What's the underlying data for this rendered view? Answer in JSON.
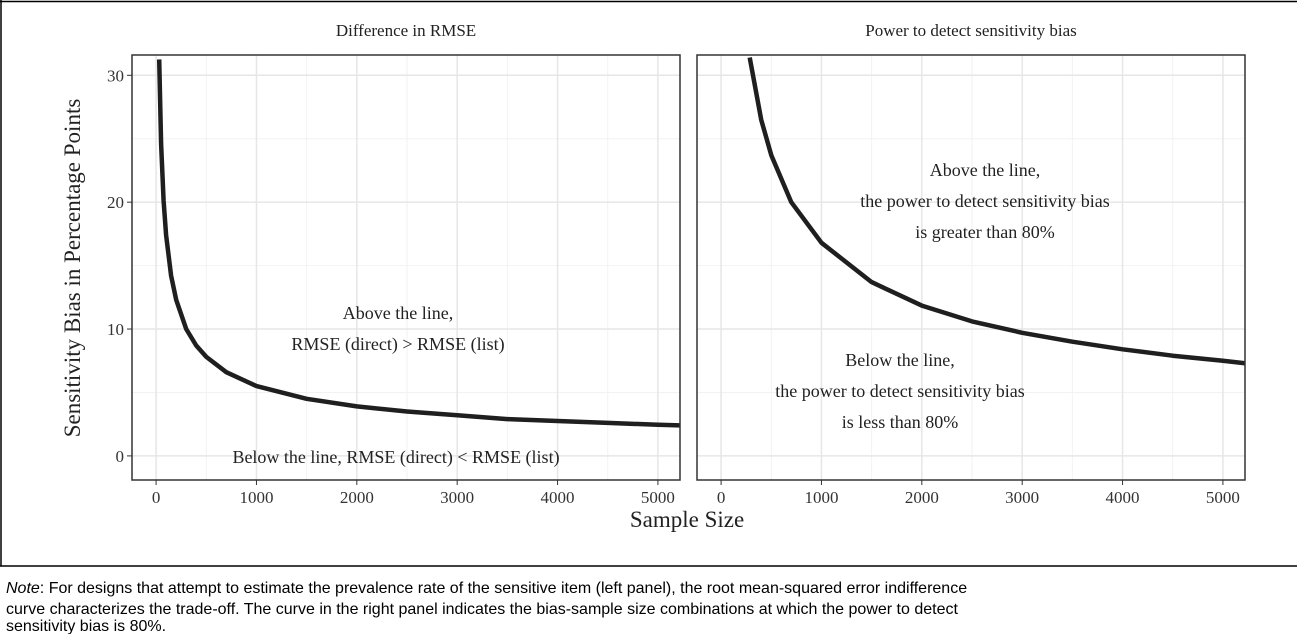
{
  "chart_data": [
    {
      "type": "line",
      "title": "Difference in RMSE",
      "x": [
        31,
        50,
        75,
        100,
        150,
        200,
        300,
        400,
        500,
        700,
        1000,
        1500,
        2000,
        2500,
        3000,
        3500,
        4000,
        4500,
        5000,
        5220
      ],
      "values": [
        31.25,
        24.6,
        20.1,
        17.4,
        14.2,
        12.3,
        10.0,
        8.7,
        7.8,
        6.6,
        5.5,
        4.5,
        3.9,
        3.5,
        3.2,
        2.9,
        2.75,
        2.6,
        2.45,
        2.4
      ],
      "color": "#1f1f1f",
      "xlim": [
        -240,
        5220
      ],
      "ylim": [
        -1.9,
        31.6
      ],
      "xticks": [
        0,
        1000,
        2000,
        3000,
        4000,
        5000
      ],
      "yticks": [
        0,
        10,
        20,
        30
      ],
      "minor_xticks": [
        500,
        1500,
        2500,
        3500,
        4500
      ],
      "minor_yticks": [
        5,
        15,
        25
      ],
      "grid": true,
      "y_tick_labels": true,
      "annotations": [
        {
          "lines": [
            "Above the line,",
            "RMSE (direct) > RMSE (list)"
          ]
        },
        {
          "lines": [
            "Below the line, RMSE (direct) < RMSE (list)"
          ]
        }
      ]
    },
    {
      "type": "line",
      "title": "Power to detect sensitivity bias",
      "x": [
        285,
        400,
        500,
        700,
        1000,
        1500,
        2000,
        2500,
        3000,
        3500,
        4000,
        4500,
        5000,
        5220
      ],
      "values": [
        31.4,
        26.5,
        23.7,
        20.0,
        16.8,
        13.7,
        11.85,
        10.6,
        9.7,
        9.0,
        8.4,
        7.9,
        7.5,
        7.3
      ],
      "color": "#1f1f1f",
      "xlim": [
        -240,
        5220
      ],
      "ylim": [
        -1.9,
        31.6
      ],
      "xticks": [
        0,
        1000,
        2000,
        3000,
        4000,
        5000
      ],
      "yticks": [
        0,
        10,
        20,
        30
      ],
      "minor_xticks": [
        500,
        1500,
        2500,
        3500,
        4500
      ],
      "minor_yticks": [
        5,
        15,
        25
      ],
      "grid": true,
      "y_tick_labels": false,
      "annotations": [
        {
          "lines": [
            "Above the line,",
            "the power to detect sensitivity bias",
            "is greater than 80%"
          ]
        },
        {
          "lines": [
            "Below the line,",
            "the power to detect sensitivity bias",
            "is less than 80%"
          ]
        }
      ]
    }
  ],
  "xlabel": "Sample Size",
  "ylabel": "Sensitivity Bias in Percentage Points",
  "note": {
    "label": "Note",
    "lines": [
      ": For designs that attempt to estimate the prevalence rate of the sensitive item (left panel), the root mean-squared error indifference",
      "curve characterizes the trade-off. The curve in the right panel indicates the bias-sample size combinations at which the power to detect",
      "sensitivity bias is 80%."
    ]
  }
}
